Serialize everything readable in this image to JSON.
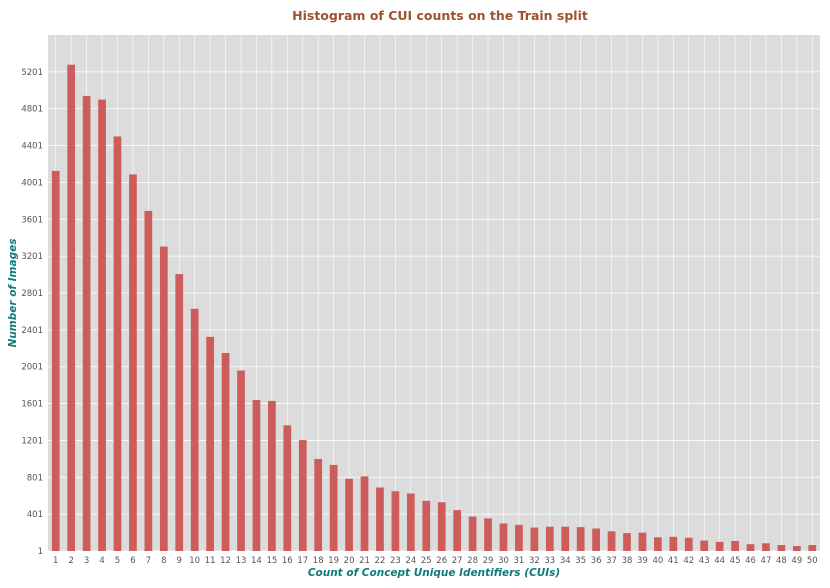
{
  "chart_data": {
    "type": "bar",
    "title": "Histogram of CUI counts on the Train split",
    "xlabel": "Count of Concept Unique Identifiers (CUIs)",
    "ylabel": "Number of Images",
    "categories": [
      "1",
      "2",
      "3",
      "4",
      "5",
      "6",
      "7",
      "8",
      "9",
      "10",
      "11",
      "12",
      "13",
      "14",
      "15",
      "16",
      "17",
      "18",
      "19",
      "20",
      "21",
      "22",
      "23",
      "24",
      "25",
      "26",
      "27",
      "28",
      "29",
      "30",
      "31",
      "32",
      "33",
      "34",
      "35",
      "36",
      "37",
      "38",
      "39",
      "40",
      "41",
      "42",
      "43",
      "44",
      "45",
      "46",
      "47",
      "48",
      "49",
      "50"
    ],
    "values": [
      4126,
      5279,
      4940,
      4900,
      4500,
      4088,
      3692,
      3305,
      3006,
      2630,
      2325,
      2150,
      1960,
      1640,
      1630,
      1365,
      1205,
      1000,
      935,
      785,
      810,
      690,
      650,
      625,
      545,
      530,
      445,
      375,
      355,
      300,
      285,
      255,
      265,
      265,
      260,
      245,
      215,
      195,
      200,
      150,
      155,
      145,
      115,
      100,
      110,
      75,
      85,
      65,
      55,
      65
    ],
    "yticks": [
      1,
      401,
      801,
      1201,
      1601,
      2001,
      2401,
      2801,
      3201,
      3601,
      4001,
      4401,
      4801,
      5201
    ],
    "ylim": [
      1,
      5601
    ],
    "grid": true,
    "bar_color": "#cd5c5c",
    "background_color": "#dcdcdc",
    "grid_color": "#ffffff"
  }
}
